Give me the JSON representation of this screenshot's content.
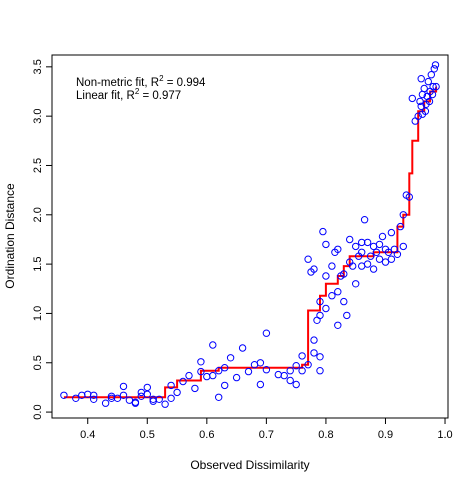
{
  "chart_data": {
    "type": "scatter",
    "xlabel": "Observed Dissimilarity",
    "ylabel": "Ordination Distance",
    "xlim": [
      0.34,
      1.005
    ],
    "ylim": [
      -0.06,
      3.62
    ],
    "xticks": [
      "0.4",
      "0.5",
      "0.6",
      "0.7",
      "0.8",
      "0.9",
      "1.0"
    ],
    "yticks": [
      "0.0",
      "0.5",
      "1.0",
      "1.5",
      "2.0",
      "2.5",
      "3.0",
      "3.5"
    ],
    "annotations": [
      {
        "text": "Non-metric fit, R",
        "sup": "2",
        "tail": " = 0.994"
      },
      {
        "text": "Linear fit, R",
        "sup": "2",
        "tail": " = 0.977"
      }
    ],
    "colors": {
      "points": "#0000ff",
      "fit_line": "#ff0000",
      "axis": "#000000"
    },
    "points": [
      [
        0.36,
        0.17
      ],
      [
        0.38,
        0.14
      ],
      [
        0.39,
        0.17
      ],
      [
        0.4,
        0.18
      ],
      [
        0.41,
        0.17
      ],
      [
        0.41,
        0.13
      ],
      [
        0.43,
        0.09
      ],
      [
        0.44,
        0.16
      ],
      [
        0.44,
        0.14
      ],
      [
        0.45,
        0.14
      ],
      [
        0.46,
        0.26
      ],
      [
        0.46,
        0.17
      ],
      [
        0.47,
        0.12
      ],
      [
        0.48,
        0.1
      ],
      [
        0.48,
        0.09
      ],
      [
        0.49,
        0.2
      ],
      [
        0.49,
        0.16
      ],
      [
        0.5,
        0.25
      ],
      [
        0.5,
        0.18
      ],
      [
        0.51,
        0.11
      ],
      [
        0.51,
        0.13
      ],
      [
        0.52,
        0.13
      ],
      [
        0.53,
        0.08
      ],
      [
        0.54,
        0.27
      ],
      [
        0.54,
        0.14
      ],
      [
        0.55,
        0.2
      ],
      [
        0.56,
        0.31
      ],
      [
        0.57,
        0.37
      ],
      [
        0.58,
        0.24
      ],
      [
        0.59,
        0.51
      ],
      [
        0.59,
        0.41
      ],
      [
        0.6,
        0.36
      ],
      [
        0.61,
        0.37
      ],
      [
        0.61,
        0.68
      ],
      [
        0.62,
        0.15
      ],
      [
        0.62,
        0.42
      ],
      [
        0.63,
        0.27
      ],
      [
        0.63,
        0.45
      ],
      [
        0.64,
        0.55
      ],
      [
        0.65,
        0.35
      ],
      [
        0.66,
        0.65
      ],
      [
        0.67,
        0.41
      ],
      [
        0.68,
        0.48
      ],
      [
        0.69,
        0.5
      ],
      [
        0.69,
        0.28
      ],
      [
        0.7,
        0.8
      ],
      [
        0.7,
        0.43
      ],
      [
        0.72,
        0.38
      ],
      [
        0.73,
        0.37
      ],
      [
        0.74,
        0.32
      ],
      [
        0.74,
        0.42
      ],
      [
        0.75,
        0.28
      ],
      [
        0.75,
        0.47
      ],
      [
        0.76,
        0.42
      ],
      [
        0.76,
        0.57
      ],
      [
        0.77,
        0.48
      ],
      [
        0.78,
        0.6
      ],
      [
        0.78,
        0.73
      ],
      [
        0.79,
        0.56
      ],
      [
        0.79,
        0.42
      ],
      [
        0.77,
        1.55
      ],
      [
        0.775,
        1.42
      ],
      [
        0.78,
        1.45
      ],
      [
        0.785,
        0.93
      ],
      [
        0.79,
        1.12
      ],
      [
        0.79,
        0.98
      ],
      [
        0.795,
        1.83
      ],
      [
        0.8,
        1.7
      ],
      [
        0.8,
        1.38
      ],
      [
        0.8,
        1.05
      ],
      [
        0.81,
        1.18
      ],
      [
        0.81,
        1.48
      ],
      [
        0.815,
        1.62
      ],
      [
        0.82,
        1.65
      ],
      [
        0.82,
        1.22
      ],
      [
        0.82,
        0.88
      ],
      [
        0.825,
        1.38
      ],
      [
        0.83,
        1.4
      ],
      [
        0.83,
        1.12
      ],
      [
        0.835,
        0.98
      ],
      [
        0.84,
        1.75
      ],
      [
        0.84,
        1.52
      ],
      [
        0.845,
        1.48
      ],
      [
        0.85,
        1.68
      ],
      [
        0.85,
        1.3
      ],
      [
        0.855,
        1.58
      ],
      [
        0.86,
        1.72
      ],
      [
        0.86,
        1.48
      ],
      [
        0.86,
        1.62
      ],
      [
        0.865,
        1.95
      ],
      [
        0.87,
        1.5
      ],
      [
        0.87,
        1.72
      ],
      [
        0.875,
        1.58
      ],
      [
        0.88,
        1.68
      ],
      [
        0.88,
        1.45
      ],
      [
        0.885,
        1.62
      ],
      [
        0.89,
        1.7
      ],
      [
        0.89,
        1.55
      ],
      [
        0.895,
        1.78
      ],
      [
        0.9,
        1.65
      ],
      [
        0.9,
        1.52
      ],
      [
        0.905,
        1.62
      ],
      [
        0.91,
        1.82
      ],
      [
        0.91,
        1.55
      ],
      [
        0.915,
        1.65
      ],
      [
        0.92,
        1.6
      ],
      [
        0.925,
        1.88
      ],
      [
        0.93,
        2.0
      ],
      [
        0.93,
        1.68
      ],
      [
        0.935,
        2.2
      ],
      [
        0.94,
        2.18
      ],
      [
        0.945,
        3.18
      ],
      [
        0.95,
        2.95
      ],
      [
        0.955,
        3.0
      ],
      [
        0.958,
        3.15
      ],
      [
        0.96,
        3.1
      ],
      [
        0.962,
        3.22
      ],
      [
        0.965,
        3.28
      ],
      [
        0.967,
        3.05
      ],
      [
        0.97,
        3.2
      ],
      [
        0.972,
        3.35
      ],
      [
        0.975,
        3.25
      ],
      [
        0.977,
        3.42
      ],
      [
        0.98,
        3.3
      ],
      [
        0.982,
        3.48
      ],
      [
        0.984,
        3.52
      ],
      [
        0.96,
        3.38
      ],
      [
        0.968,
        3.12
      ],
      [
        0.974,
        3.15
      ],
      [
        0.979,
        3.22
      ],
      [
        0.962,
        3.02
      ],
      [
        0.985,
        3.3
      ]
    ],
    "step_fit": [
      [
        0.36,
        0.15
      ],
      [
        0.53,
        0.15
      ],
      [
        0.53,
        0.25
      ],
      [
        0.55,
        0.25
      ],
      [
        0.55,
        0.32
      ],
      [
        0.59,
        0.32
      ],
      [
        0.59,
        0.42
      ],
      [
        0.62,
        0.42
      ],
      [
        0.62,
        0.45
      ],
      [
        0.76,
        0.45
      ],
      [
        0.76,
        0.48
      ],
      [
        0.77,
        0.48
      ],
      [
        0.77,
        1.03
      ],
      [
        0.79,
        1.03
      ],
      [
        0.79,
        1.18
      ],
      [
        0.8,
        1.18
      ],
      [
        0.8,
        1.3
      ],
      [
        0.82,
        1.3
      ],
      [
        0.82,
        1.38
      ],
      [
        0.83,
        1.38
      ],
      [
        0.83,
        1.48
      ],
      [
        0.84,
        1.48
      ],
      [
        0.84,
        1.58
      ],
      [
        0.88,
        1.58
      ],
      [
        0.88,
        1.62
      ],
      [
        0.92,
        1.62
      ],
      [
        0.92,
        1.88
      ],
      [
        0.93,
        1.88
      ],
      [
        0.93,
        2.0
      ],
      [
        0.94,
        2.0
      ],
      [
        0.94,
        2.42
      ],
      [
        0.945,
        2.42
      ],
      [
        0.945,
        2.75
      ],
      [
        0.955,
        2.75
      ],
      [
        0.955,
        3.05
      ],
      [
        0.965,
        3.05
      ],
      [
        0.965,
        3.15
      ],
      [
        0.975,
        3.15
      ],
      [
        0.975,
        3.25
      ],
      [
        0.985,
        3.25
      ],
      [
        0.985,
        3.3
      ]
    ]
  }
}
